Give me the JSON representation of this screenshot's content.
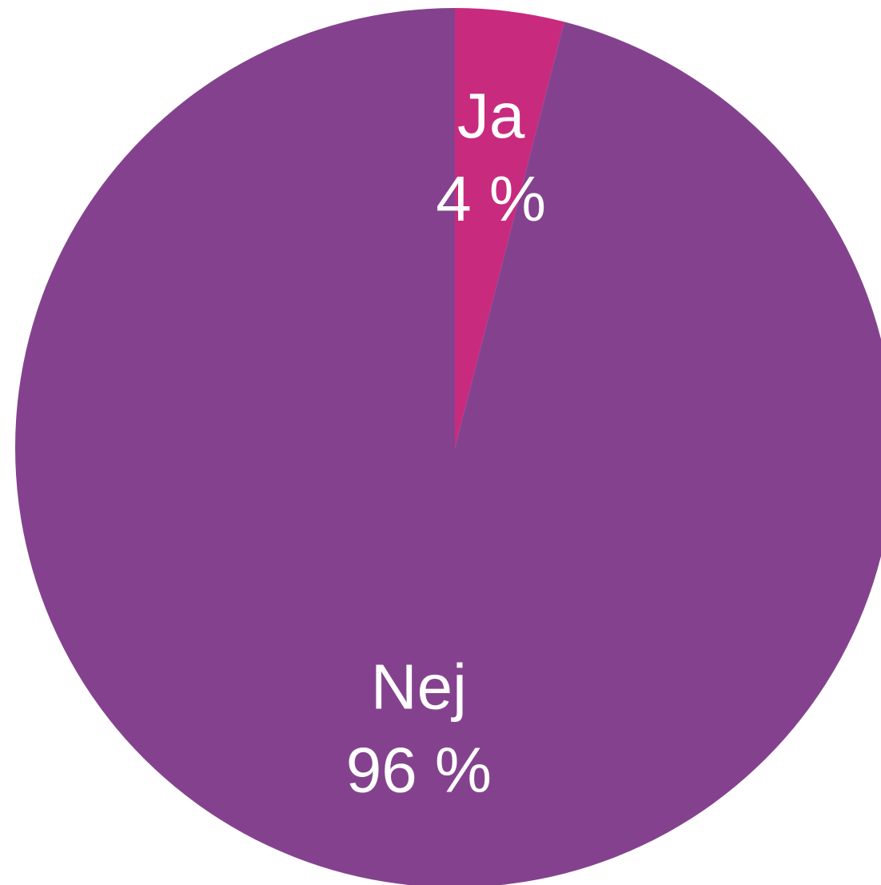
{
  "chart_data": {
    "type": "pie",
    "categories": [
      "Ja",
      "Nej"
    ],
    "values": [
      4,
      96
    ],
    "value_labels": [
      "4 %",
      "96 %"
    ],
    "colors": [
      "#c82a7e",
      "#84428e"
    ]
  }
}
